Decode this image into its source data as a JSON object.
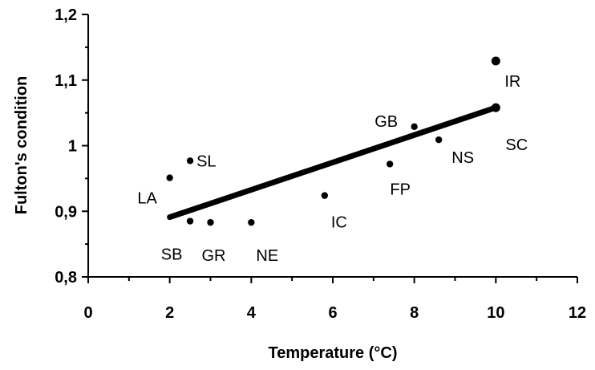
{
  "chart_data": {
    "type": "scatter",
    "title": "",
    "xlabel": "Temperature (°C)",
    "ylabel": "Fulton's condition",
    "xlim": [
      0,
      12
    ],
    "ylim": [
      0.8,
      1.2
    ],
    "xticks": [
      0,
      2,
      4,
      6,
      8,
      10,
      12
    ],
    "xtick_labels": [
      "0",
      "2",
      "4",
      "6",
      "8",
      "10",
      "12"
    ],
    "yticks": [
      0.8,
      0.9,
      1.0,
      1.1,
      1.2
    ],
    "ytick_labels": [
      "0,8",
      "0,9",
      "1",
      "1,1",
      "1,2"
    ],
    "grid": false,
    "legend": "none",
    "points": [
      {
        "label": "LA",
        "x": 2.0,
        "y": 0.951
      },
      {
        "label": "SL",
        "x": 2.5,
        "y": 0.977
      },
      {
        "label": "SB",
        "x": 2.5,
        "y": 0.885
      },
      {
        "label": "GR",
        "x": 3.0,
        "y": 0.883
      },
      {
        "label": "NE",
        "x": 4.0,
        "y": 0.883
      },
      {
        "label": "IC",
        "x": 5.8,
        "y": 0.924
      },
      {
        "label": "FP",
        "x": 7.4,
        "y": 0.972
      },
      {
        "label": "GB",
        "x": 8.0,
        "y": 1.029
      },
      {
        "label": "NS",
        "x": 8.6,
        "y": 1.009
      },
      {
        "label": "IR",
        "x": 10.0,
        "y": 1.129
      },
      {
        "label": "SC",
        "x": 10.0,
        "y": 1.058
      }
    ],
    "trendline": {
      "x": [
        2.0,
        10.0
      ],
      "y": [
        0.891,
        1.058
      ]
    }
  }
}
